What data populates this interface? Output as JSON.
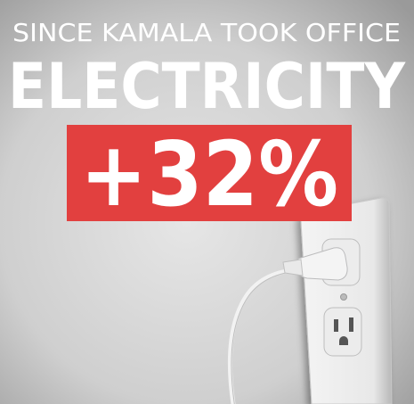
{
  "header": {
    "subtitle": "SINCE KAMALA TOOK OFFICE",
    "title": "ELECTRICITY",
    "badge": "+32%"
  }
}
